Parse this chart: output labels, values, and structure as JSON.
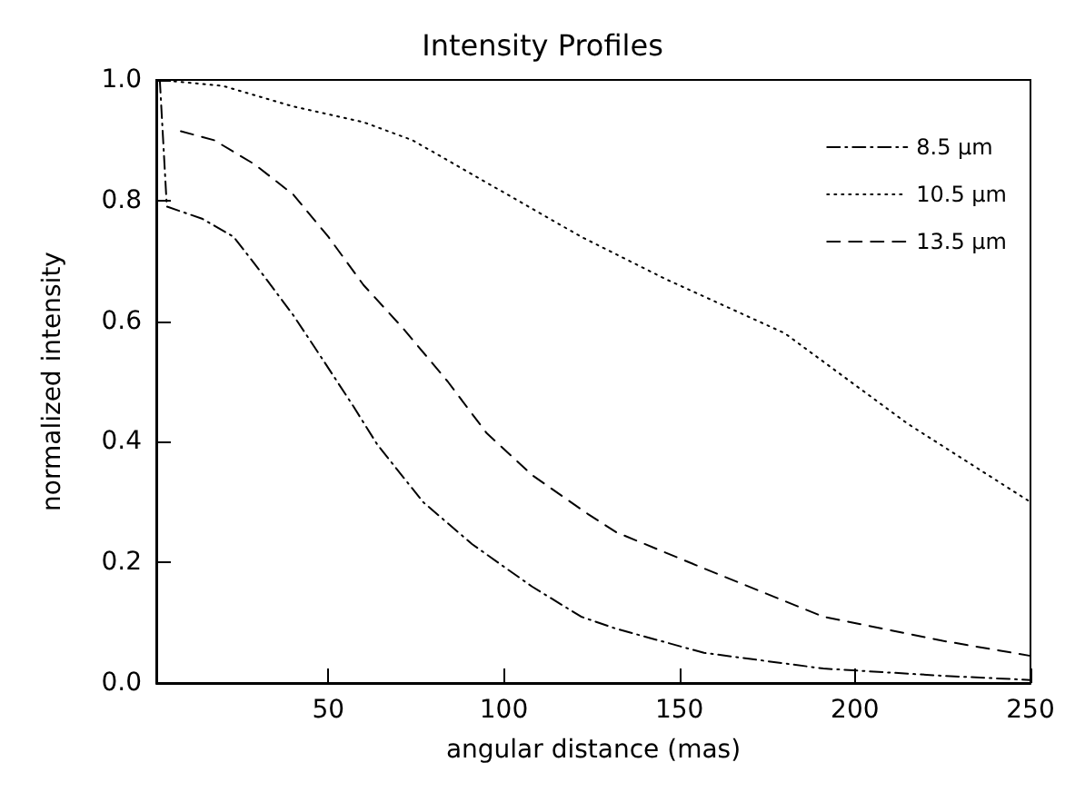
{
  "chart_data": {
    "type": "line",
    "title": "Intensity Profiles",
    "xlabel": "angular distance (mas)",
    "ylabel": "normalized intensity",
    "xlim": [
      1,
      250
    ],
    "ylim": [
      0,
      1.0
    ],
    "xticks": [
      50,
      100,
      150,
      200,
      250
    ],
    "yticks": [
      {
        "value": 0,
        "label": "0.0"
      },
      {
        "value": 0.2,
        "label": "0.2"
      },
      {
        "value": 0.4,
        "label": "0.4"
      },
      {
        "value": 0.6,
        "label": "0.6"
      },
      {
        "value": 0.8,
        "label": "0.8"
      },
      {
        "value": 1.0,
        "label": "1.0"
      }
    ],
    "grid": false,
    "legend": "top right",
    "marker": "none",
    "series": [
      {
        "name": "8.5 μm",
        "color": "#000000",
        "line_style": "dashdot",
        "x": [
          2,
          4,
          14,
          23,
          31,
          40,
          48,
          57,
          64,
          77,
          91,
          108,
          122,
          132,
          157,
          191,
          225,
          250
        ],
        "values": [
          1.0,
          0.79,
          0.77,
          0.74,
          0.68,
          0.61,
          0.54,
          0.46,
          0.395,
          0.3,
          0.23,
          0.16,
          0.11,
          0.09,
          0.05,
          0.024,
          0.012,
          0.005
        ]
      },
      {
        "name": "10.5 μm",
        "color": "#000000",
        "line_style": "dotted",
        "x": [
          2,
          20,
          40,
          60,
          74,
          98,
          122,
          146,
          180,
          215,
          250
        ],
        "values": [
          1.0,
          0.99,
          0.956,
          0.93,
          0.9,
          0.82,
          0.74,
          0.67,
          0.58,
          0.43,
          0.3
        ]
      },
      {
        "name": "13.5 μm",
        "color": "#000000",
        "line_style": "dashed",
        "x": [
          8,
          17.5,
          29,
          40,
          50,
          60,
          71,
          84,
          95,
          108,
          124,
          132,
          157,
          191,
          225,
          250
        ],
        "values": [
          0.915,
          0.9,
          0.86,
          0.81,
          0.74,
          0.66,
          0.59,
          0.5,
          0.415,
          0.345,
          0.28,
          0.25,
          0.19,
          0.11,
          0.07,
          0.045
        ]
      }
    ]
  }
}
